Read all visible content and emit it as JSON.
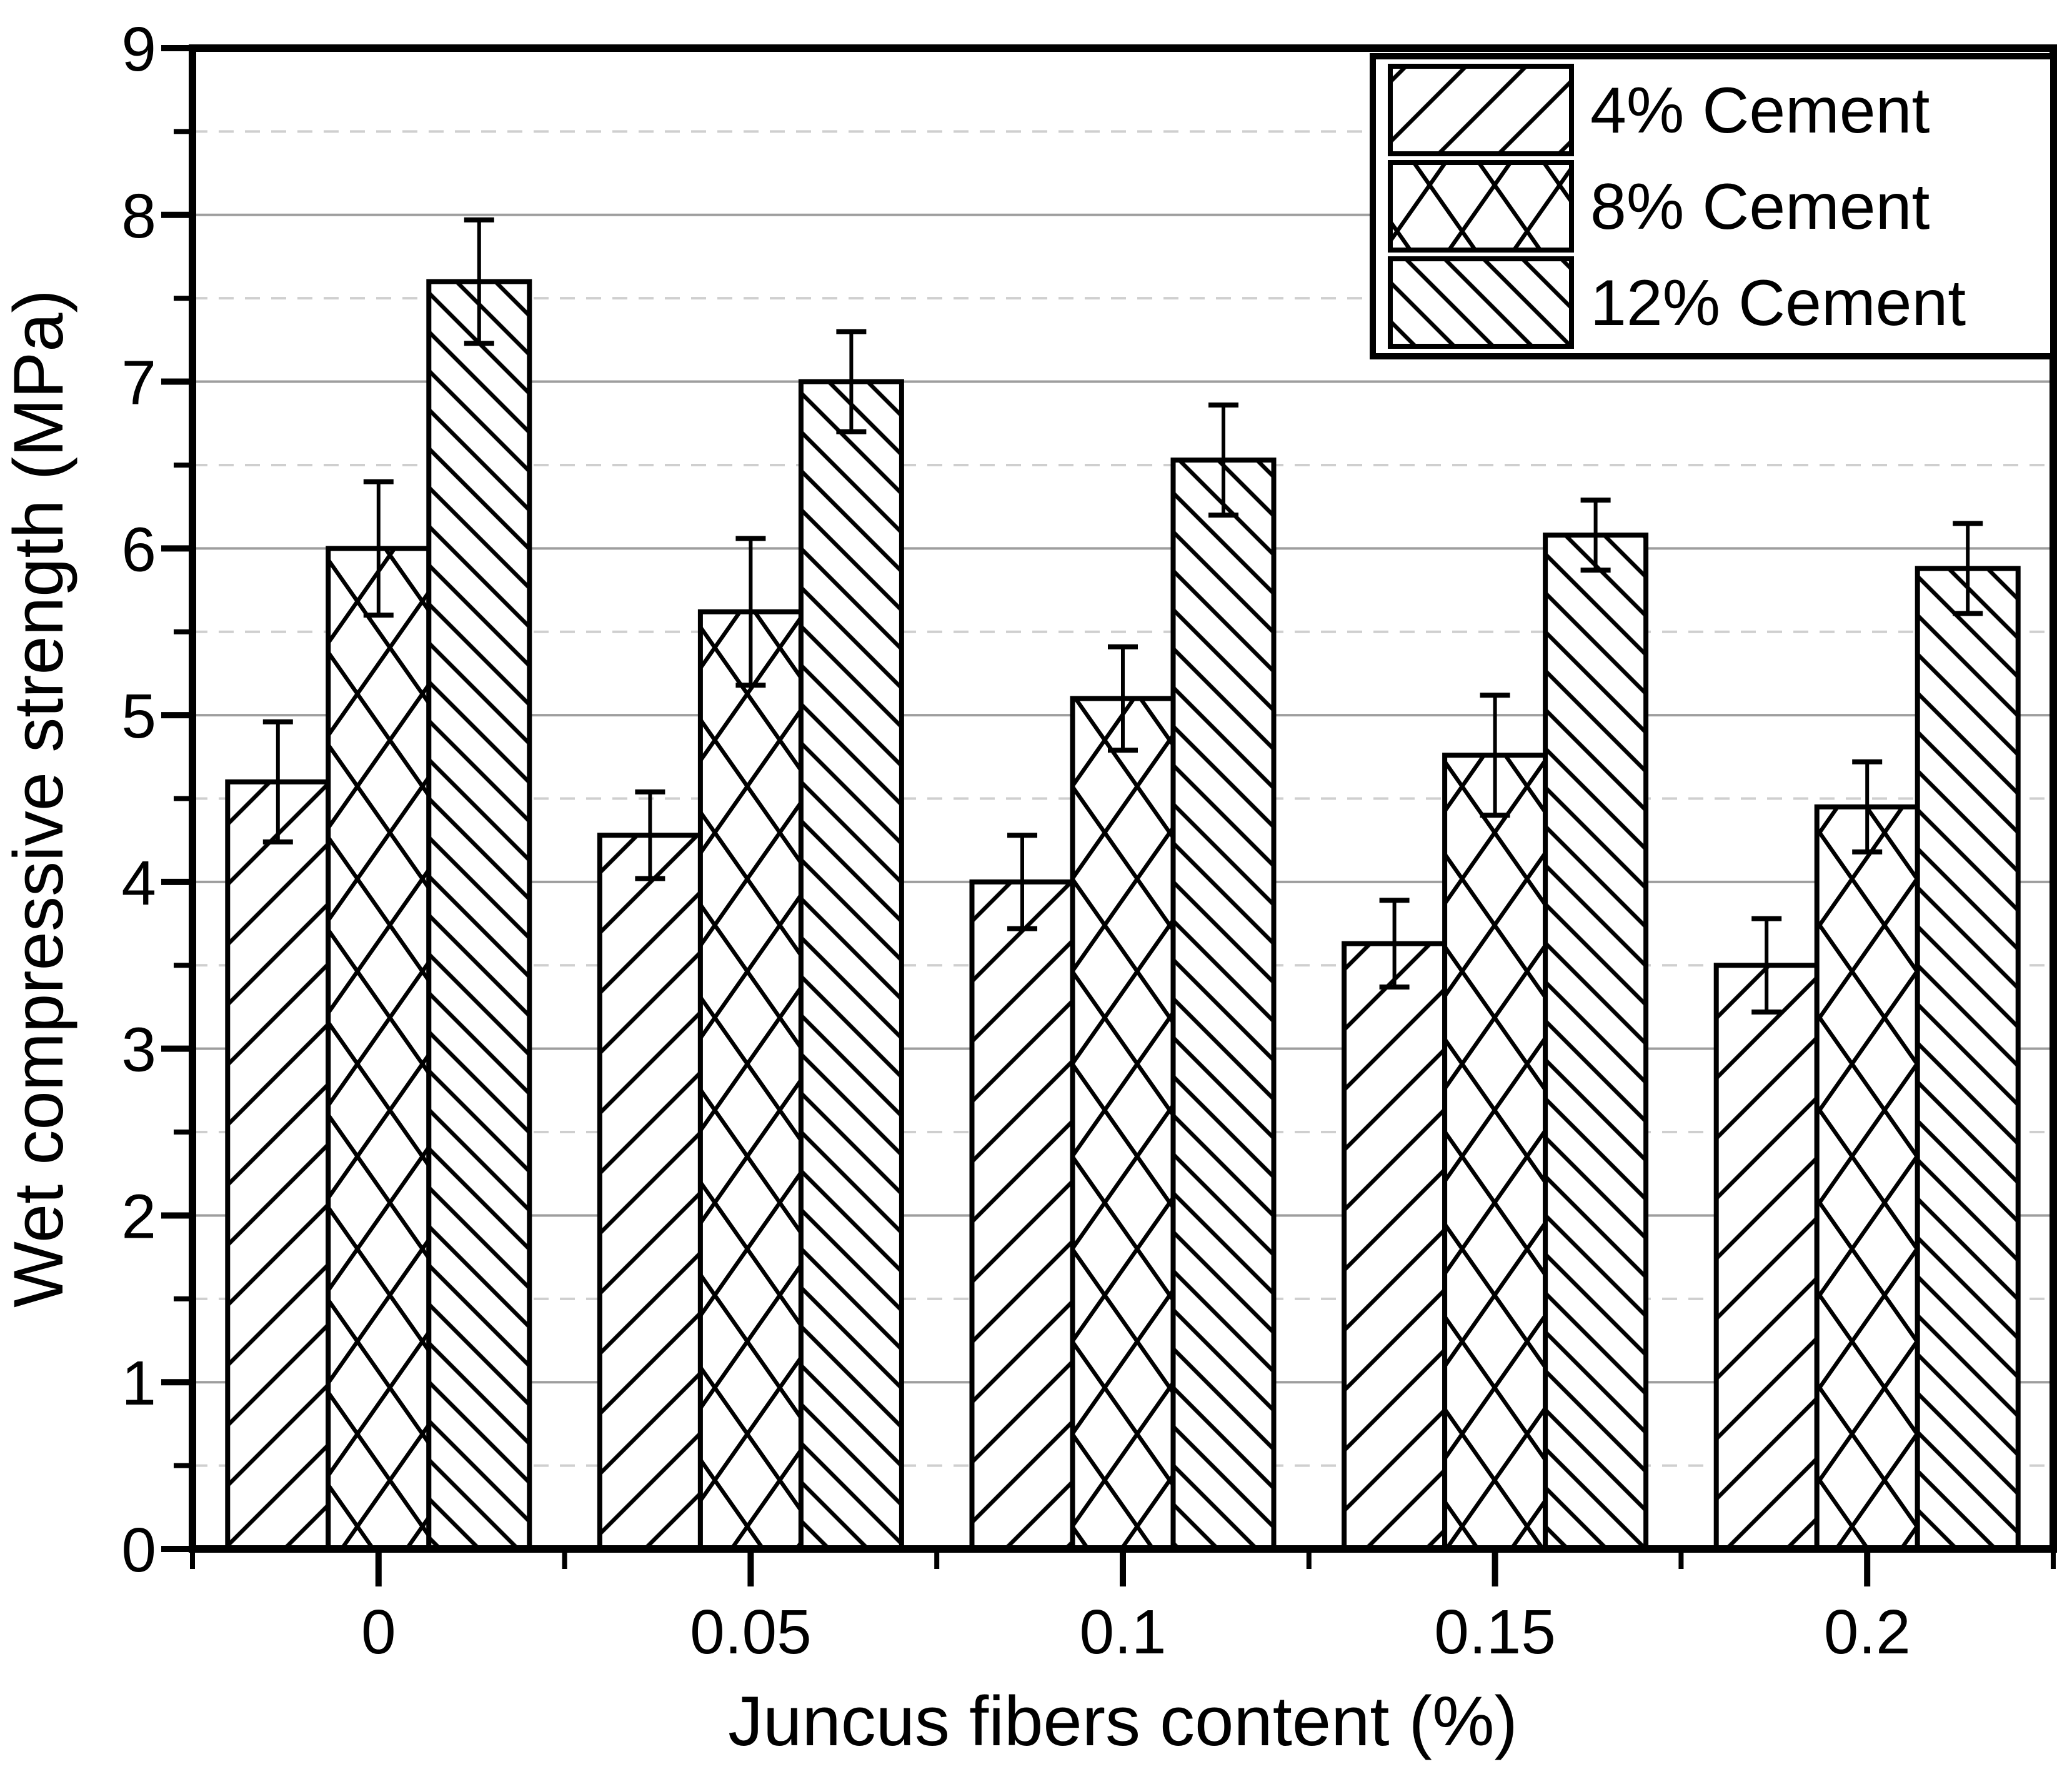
{
  "chart_data": {
    "type": "bar",
    "title": "",
    "xlabel": "Juncus fibers content (%)",
    "ylabel": "Wet compressive strength (MPa)",
    "categories": [
      "0",
      "0.05",
      "0.1",
      "0.15",
      "0.2"
    ],
    "y_tick_labels": [
      "0",
      "1",
      "2",
      "3",
      "4",
      "5",
      "6",
      "7",
      "8",
      "9"
    ],
    "ylim": [
      0,
      9
    ],
    "y_major_step": 1,
    "y_minor_step": 0.5,
    "grid": {
      "major_style": "solid",
      "minor_style": "dashed",
      "grid_on": true
    },
    "legend_position": "top-right",
    "series": [
      {
        "name": "4% Cement",
        "hatch": "forward-diagonal",
        "values": [
          4.6,
          4.28,
          4.0,
          3.63,
          3.5
        ],
        "errors": [
          0.36,
          0.26,
          0.28,
          0.26,
          0.28
        ]
      },
      {
        "name": "8% Cement",
        "hatch": "crosshatch",
        "values": [
          6.0,
          5.62,
          5.1,
          4.76,
          4.45
        ],
        "errors": [
          0.4,
          0.44,
          0.31,
          0.36,
          0.27
        ]
      },
      {
        "name": "12% Cement",
        "hatch": "backward-diagonal",
        "values": [
          7.6,
          7.0,
          6.53,
          6.08,
          5.88
        ],
        "errors": [
          0.37,
          0.3,
          0.33,
          0.21,
          0.27
        ]
      }
    ],
    "colors": {
      "stroke": "#000000",
      "bar_fill": "#ffffff",
      "grid_major": "#9e9e9e",
      "grid_minor": "#cfcfcf",
      "background": "#ffffff",
      "text": "#000000"
    }
  }
}
